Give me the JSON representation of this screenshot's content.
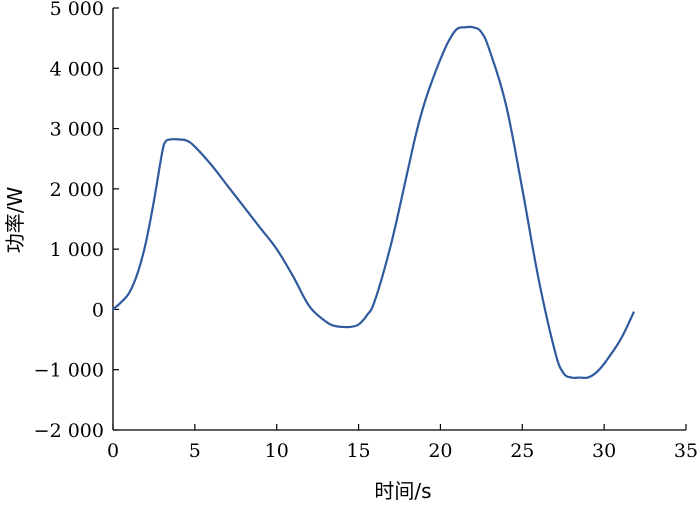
{
  "chart_data": {
    "type": "line",
    "title": "",
    "xlabel": "时间/s",
    "ylabel": "功率/W",
    "xlim": [
      0,
      35
    ],
    "ylim": [
      -2000,
      5000
    ],
    "x_ticks": [
      0,
      5,
      10,
      15,
      20,
      25,
      30,
      35
    ],
    "x_tick_labels": [
      "0",
      "5",
      "10",
      "15",
      "20",
      "25",
      "30",
      "35"
    ],
    "y_ticks": [
      -2000,
      -1000,
      0,
      1000,
      2000,
      3000,
      4000,
      5000
    ],
    "y_tick_labels": [
      "−2 000",
      "−1 000",
      "0",
      "1 000",
      "2 000",
      "3 000",
      "4 000",
      "5 000"
    ],
    "grid": false,
    "line_color": "#2f5b9e",
    "series": [
      {
        "x": [
          0,
          0.5,
          1,
          1.5,
          2,
          2.5,
          3,
          3.2,
          3.5,
          4,
          4.5,
          5,
          6,
          7,
          8,
          9,
          10,
          11,
          12,
          13,
          13.5,
          14,
          14.5,
          15,
          15.5,
          16,
          17,
          18,
          18.5,
          19,
          19.5,
          20,
          20.5,
          21,
          21.5,
          22,
          22.5,
          23,
          24,
          25,
          26,
          27,
          27.5,
          28,
          28.5,
          29,
          29.5,
          30,
          31,
          31.8
        ],
        "y": [
          0,
          120,
          280,
          600,
          1100,
          1800,
          2600,
          2780,
          2820,
          2820,
          2800,
          2700,
          2400,
          2050,
          1700,
          1350,
          1000,
          550,
          50,
          -200,
          -270,
          -290,
          -290,
          -250,
          -100,
          150,
          1100,
          2300,
          2900,
          3400,
          3800,
          4150,
          4450,
          4650,
          4680,
          4680,
          4600,
          4300,
          3400,
          2000,
          500,
          -700,
          -1050,
          -1130,
          -1130,
          -1130,
          -1050,
          -900,
          -500,
          -50
        ]
      }
    ]
  }
}
